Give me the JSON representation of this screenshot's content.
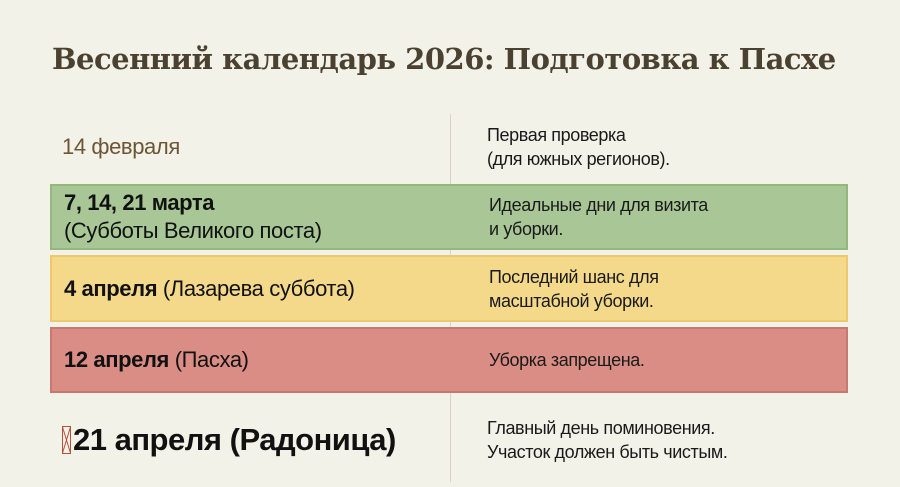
{
  "title": "Весенний календарь 2026: Подготовка к Пасхе",
  "colors": {
    "background": "#f3f2e9",
    "green": "#a9c796",
    "yellow": "#f4d98b",
    "red": "#d98d85",
    "title": "#4a4130"
  },
  "rows": [
    {
      "date": "14 февраля",
      "date_note": "",
      "desc": [
        "Первая проверка",
        "(для южных регионов)."
      ]
    },
    {
      "date": "7, 14, 21 марта",
      "date_note": "(Субботы Великого поста)",
      "desc": [
        "Идеальные дни для визита",
        "и уборки."
      ]
    },
    {
      "date": "4 апреля",
      "date_note": " (Лазарева суббота)",
      "desc": [
        "Последний шанс для",
        "масштабной уборки."
      ]
    },
    {
      "date": "12 апреля",
      "date_note": " (Пасха)",
      "desc": [
        "Уборка запрещена."
      ]
    },
    {
      "date": "21 апреля (Радоница)",
      "desc": [
        "Главный день поминовения.",
        "Участок должен быть чистым."
      ],
      "icon": "missing-glyph-icon"
    }
  ]
}
